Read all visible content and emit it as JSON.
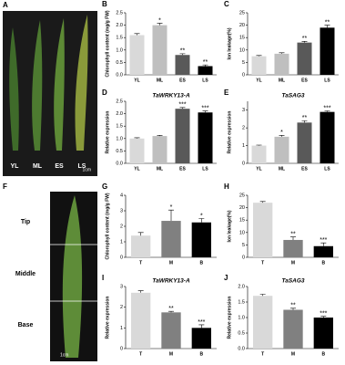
{
  "figure": {
    "panel_a": {
      "letter": "A",
      "labels": [
        "YL",
        "ML",
        "ES",
        "LS"
      ],
      "scale": "1cm"
    },
    "panel_f": {
      "letter": "F",
      "labels": [
        "Tip",
        "Middle",
        "Base"
      ],
      "scale": "1cm"
    }
  },
  "chart_data": [
    {
      "type": "bar",
      "panel": "B",
      "ylabel": "Chlorophyll content (mg/g FW)",
      "categories": [
        "YL",
        "ML",
        "ES",
        "LS"
      ],
      "values": [
        1.6,
        2.0,
        0.8,
        0.35
      ],
      "errors": [
        0.06,
        0.08,
        0.05,
        0.05
      ],
      "annotations": [
        null,
        "*",
        "**",
        "**"
      ],
      "colors": [
        "#d9d9d9",
        "#bfbfbf",
        "#595959",
        "#000000"
      ],
      "ylim": [
        0,
        2.5
      ],
      "yticks": [
        {
          "value": 0,
          "label": "0.0"
        },
        {
          "value": 0.5,
          "label": "0.5"
        },
        {
          "value": 1,
          "label": "1.0"
        },
        {
          "value": 1.5,
          "label": "1.5"
        },
        {
          "value": 2,
          "label": "2.0"
        },
        {
          "value": 2.5,
          "label": "2.5"
        }
      ]
    },
    {
      "type": "bar",
      "panel": "C",
      "ylabel": "Ion leakage(%)",
      "categories": [
        "YL",
        "ML",
        "ES",
        "LS"
      ],
      "values": [
        7.5,
        8.5,
        13,
        19
      ],
      "errors": [
        0.3,
        0.4,
        0.5,
        1.0
      ],
      "annotations": [
        null,
        null,
        "**",
        "**"
      ],
      "colors": [
        "#d9d9d9",
        "#bfbfbf",
        "#595959",
        "#000000"
      ],
      "ylim": [
        0,
        25
      ],
      "yticks": [
        0,
        5,
        10,
        15,
        20,
        25
      ]
    },
    {
      "type": "bar",
      "panel": "D",
      "title": "TaWRKY13-A",
      "ylabel": "Relative expression",
      "categories": [
        "YL",
        "ML",
        "ES",
        "LS"
      ],
      "values": [
        1.0,
        1.1,
        2.2,
        2.05
      ],
      "errors": [
        0.03,
        0.03,
        0.05,
        0.06
      ],
      "annotations": [
        null,
        null,
        "***",
        "***"
      ],
      "colors": [
        "#d9d9d9",
        "#bfbfbf",
        "#595959",
        "#000000"
      ],
      "ylim": [
        0,
        2.5
      ],
      "yticks": [
        {
          "value": 0,
          "label": "0.0"
        },
        {
          "value": 0.5,
          "label": "0.5"
        },
        {
          "value": 1,
          "label": "1.0"
        },
        {
          "value": 1.5,
          "label": "1.5"
        },
        {
          "value": 2,
          "label": "2.0"
        },
        {
          "value": 2.5,
          "label": "2.5"
        }
      ]
    },
    {
      "type": "bar",
      "panel": "E",
      "title": "TaSAG3",
      "ylabel": "Relative expression",
      "categories": [
        "YL",
        "ML",
        "ES",
        "LS"
      ],
      "values": [
        1.0,
        1.5,
        2.3,
        2.9
      ],
      "errors": [
        0.03,
        0.08,
        0.1,
        0.06
      ],
      "annotations": [
        null,
        "*",
        "**",
        "***"
      ],
      "colors": [
        "#d9d9d9",
        "#bfbfbf",
        "#595959",
        "#000000"
      ],
      "ylim": [
        0,
        3.5
      ],
      "yticks": [
        0,
        1,
        2,
        3
      ]
    },
    {
      "type": "bar",
      "panel": "G",
      "ylabel": "Chlorophyll content (mg/g FW)",
      "categories": [
        "T",
        "M",
        "B"
      ],
      "values": [
        1.4,
        2.35,
        2.25
      ],
      "errors": [
        0.2,
        0.7,
        0.25
      ],
      "annotations": [
        null,
        "*",
        "*"
      ],
      "colors": [
        "#d9d9d9",
        "#808080",
        "#000000"
      ],
      "ylim": [
        0,
        4
      ],
      "yticks": [
        0,
        1,
        2,
        3,
        4
      ]
    },
    {
      "type": "bar",
      "panel": "H",
      "ylabel": "Ion leakage(%)",
      "categories": [
        "T",
        "M",
        "B"
      ],
      "values": [
        22,
        7,
        4.5
      ],
      "errors": [
        0.5,
        1.2,
        1.3
      ],
      "annotations": [
        null,
        "**",
        "***"
      ],
      "colors": [
        "#d9d9d9",
        "#808080",
        "#000000"
      ],
      "ylim": [
        0,
        25
      ],
      "yticks": [
        0,
        5,
        10,
        15,
        20,
        25
      ]
    },
    {
      "type": "bar",
      "panel": "I",
      "title": "TaWRKY13-A",
      "ylabel": "Relative expression",
      "categories": [
        "T",
        "M",
        "B"
      ],
      "values": [
        2.7,
        1.75,
        1.0
      ],
      "errors": [
        0.1,
        0.05,
        0.15
      ],
      "annotations": [
        null,
        "**",
        "***"
      ],
      "colors": [
        "#d9d9d9",
        "#808080",
        "#000000"
      ],
      "ylim": [
        0,
        3
      ],
      "yticks": [
        0,
        1,
        2,
        3
      ]
    },
    {
      "type": "bar",
      "panel": "J",
      "title": "TaSAG3",
      "ylabel": "Relative expression",
      "categories": [
        "T",
        "M",
        "B"
      ],
      "values": [
        1.7,
        1.25,
        1.0
      ],
      "errors": [
        0.05,
        0.05,
        0.04
      ],
      "annotations": [
        null,
        "**",
        "***"
      ],
      "colors": [
        "#d9d9d9",
        "#808080",
        "#000000"
      ],
      "ylim": [
        0,
        2
      ],
      "yticks": [
        {
          "value": 0,
          "label": "0.0"
        },
        {
          "value": 0.5,
          "label": "0.5"
        },
        {
          "value": 1,
          "label": "1.0"
        },
        {
          "value": 1.5,
          "label": "1.5"
        },
        {
          "value": 2,
          "label": "2.0"
        }
      ]
    }
  ]
}
